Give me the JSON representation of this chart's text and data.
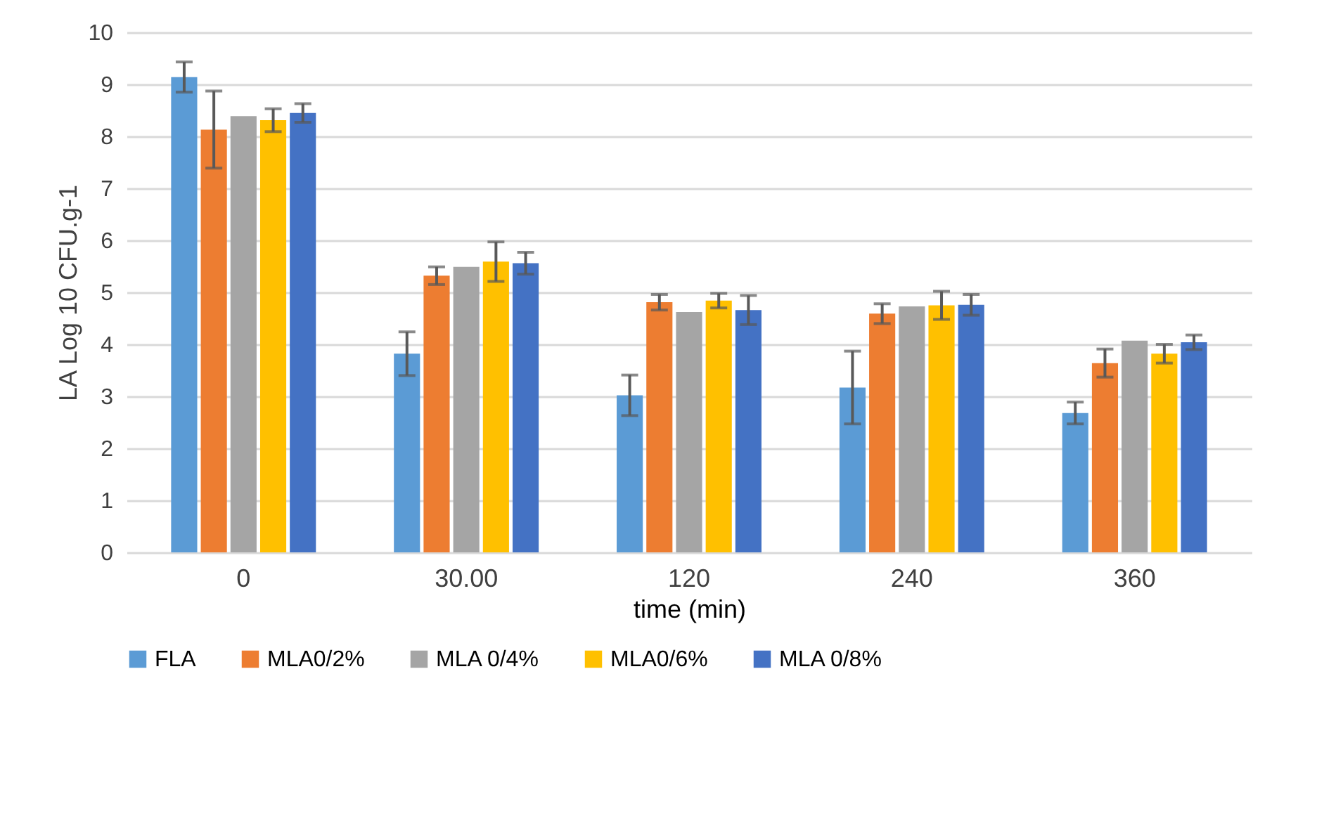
{
  "chart_data": {
    "type": "bar",
    "xlabel": "time (min)",
    "ylabel": "LA Log 10 CFU.g-1",
    "categories": [
      "0",
      "30.00",
      "120",
      "240",
      "360"
    ],
    "series": [
      {
        "name": "FLA",
        "color": "#5b9bd5",
        "values": [
          9.14,
          3.82,
          3.02,
          3.17,
          2.68
        ],
        "errors": [
          0.29,
          0.42,
          0.39,
          0.7,
          0.21
        ]
      },
      {
        "name": "MLA0/2%",
        "color": "#ed7d31",
        "values": [
          8.13,
          5.32,
          4.81,
          4.59,
          3.64
        ],
        "errors": [
          0.74,
          0.17,
          0.15,
          0.19,
          0.27
        ]
      },
      {
        "name": "MLA 0/4%",
        "color": "#a5a5a5",
        "values": [
          8.39,
          5.49,
          4.62,
          4.73,
          4.07
        ],
        "errors": [
          null,
          null,
          null,
          null,
          null
        ]
      },
      {
        "name": "MLA0/6%",
        "color": "#ffc000",
        "values": [
          8.31,
          5.59,
          4.84,
          4.75,
          3.82
        ],
        "errors": [
          0.22,
          0.38,
          0.14,
          0.27,
          0.18
        ]
      },
      {
        "name": "MLA 0/8%",
        "color": "#4472c4",
        "values": [
          8.45,
          5.56,
          4.66,
          4.76,
          4.04
        ],
        "errors": [
          0.18,
          0.21,
          0.28,
          0.2,
          0.14
        ]
      }
    ],
    "ylim": [
      0,
      10
    ],
    "yticks": [
      0,
      1,
      2,
      3,
      4,
      5,
      6,
      7,
      8,
      9,
      10
    ],
    "grid": "y",
    "legend": "bottom"
  }
}
